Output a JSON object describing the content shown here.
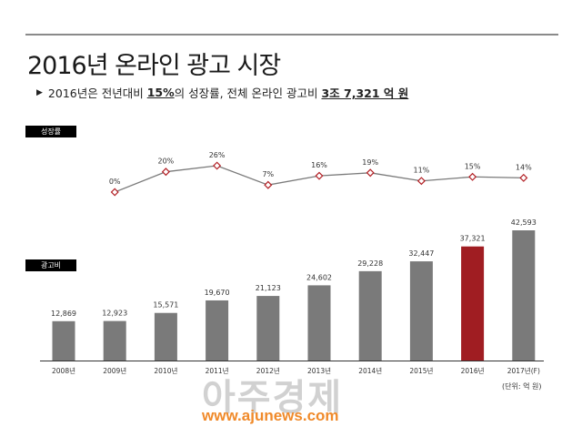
{
  "header": {
    "title": "2016년 온라인 광고 시장",
    "subtitle_prefix": "2016년은 전년대비",
    "subtitle_growth": "15%",
    "subtitle_mid": "의 성장률, 전체 온라인 광고비",
    "subtitle_amount": "3조 7,321 억 원"
  },
  "labels": {
    "growth_tag": "성장률",
    "spend_tag": "광고비",
    "unit_note": "(단위: 억 원)"
  },
  "watermark": {
    "main": "아주경제",
    "url": "www.ajunews.com"
  },
  "colors": {
    "bar_default": "#7a7a7a",
    "bar_highlight": "#a01d22",
    "line": "#7a7a7a",
    "marker": "#b21f24"
  },
  "chart_data": [
    {
      "type": "line",
      "name": "growth",
      "categories": [
        "2008년",
        "2009년",
        "2010년",
        "2011년",
        "2012년",
        "2013년",
        "2014년",
        "2015년",
        "2016년",
        "2017년(F)"
      ],
      "values": [
        0,
        20,
        26,
        7,
        16,
        19,
        11,
        15,
        14
      ],
      "value_labels": [
        "0%",
        "20%",
        "26%",
        "7%",
        "16%",
        "19%",
        "11%",
        "15%",
        "14%"
      ],
      "x": [
        "2009년",
        "2010년",
        "2011년",
        "2012년",
        "2013년",
        "2014년",
        "2015년",
        "2016년",
        "2017년(F)"
      ],
      "grid": false,
      "legend": "none"
    },
    {
      "type": "bar",
      "name": "spend",
      "categories": [
        "2008년",
        "2009년",
        "2010년",
        "2011년",
        "2012년",
        "2013년",
        "2014년",
        "2015년",
        "2016년",
        "2017년(F)"
      ],
      "values": [
        12869,
        12923,
        15571,
        19670,
        21123,
        24602,
        29228,
        32447,
        37321,
        42593
      ],
      "value_labels": [
        "12,869",
        "12,923",
        "15,571",
        "19,670",
        "21,123",
        "24,602",
        "29,228",
        "32,447",
        "37,321",
        "42,593"
      ],
      "highlight_category": "2016년",
      "ylim": [
        0,
        42593
      ],
      "grid": false,
      "legend": "none"
    }
  ]
}
